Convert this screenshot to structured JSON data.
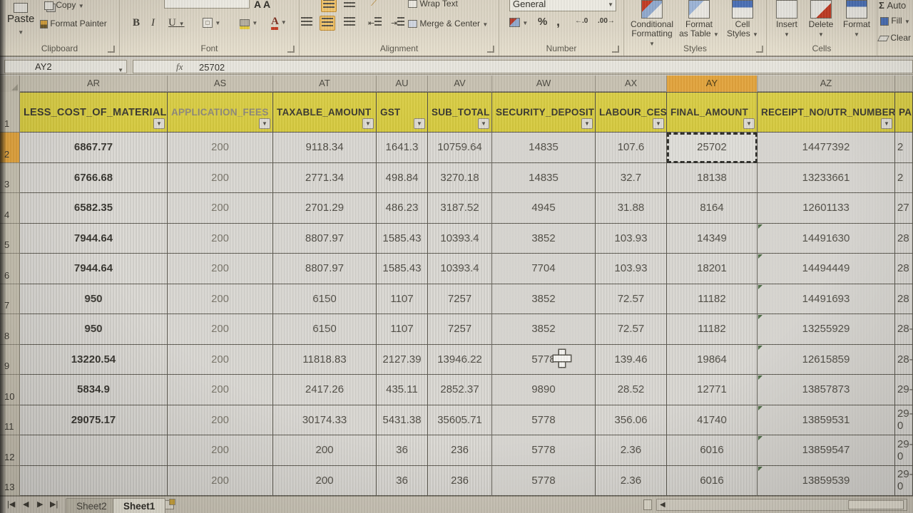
{
  "ribbon": {
    "clipboard": {
      "label": "Clipboard",
      "paste": "Paste",
      "copy": "Copy",
      "format_painter": "Format Painter"
    },
    "font": {
      "label": "Font",
      "bold": "B",
      "italic": "I",
      "underline": "U",
      "grow_shrink": "A A"
    },
    "alignment": {
      "label": "Alignment",
      "wrap_text": "Wrap Text",
      "merge_center": "Merge & Center"
    },
    "number": {
      "label": "Number",
      "format": "General",
      "percent": "%",
      "comma": ",",
      "inc_dec": "←.0",
      "dec_dec": ".00→"
    },
    "styles": {
      "label": "Styles",
      "conditional_1": "Conditional",
      "conditional_2": "Formatting",
      "table_1": "Format",
      "table_2": "as Table",
      "cellstyles_1": "Cell",
      "cellstyles_2": "Styles"
    },
    "cells": {
      "label": "Cells",
      "insert": "Insert",
      "delete": "Delete",
      "format": "Format"
    },
    "editing": {
      "autosum": "Auto",
      "fill": "Fill",
      "clear": "Clear",
      "sigma": "Σ"
    }
  },
  "formula_bar": {
    "name_box": "AY2",
    "fx": "fx",
    "value": "25702"
  },
  "grid": {
    "column_letters": [
      "AR",
      "AS",
      "AT",
      "AU",
      "AV",
      "AW",
      "AX",
      "AY",
      "AZ",
      ""
    ],
    "row1_label": "1",
    "headers": [
      "LESS_COST_OF_MATERIALS",
      "APPLICATION_FEES",
      "TAXABLE_AMOUNT",
      "GST",
      "SUB_TOTAL",
      "SECURITY_DEPOSIT",
      "LABOUR_CESS",
      "FINAL_AMOUNT",
      "RECEIPT_NO/UTR_NUMBER",
      "PA"
    ],
    "selected_column": "AY",
    "selected_row": 2,
    "az_error_flag_rows": [
      5,
      6,
      7,
      8,
      9,
      10,
      11,
      12,
      13
    ],
    "rows": [
      {
        "n": 2,
        "cells": [
          "6867.77",
          "200",
          "9118.34",
          "1641.3",
          "10759.64",
          "14835",
          "107.6",
          "25702",
          "14477392",
          "2"
        ]
      },
      {
        "n": 3,
        "cells": [
          "6766.68",
          "200",
          "2771.34",
          "498.84",
          "3270.18",
          "14835",
          "32.7",
          "18138",
          "13233661",
          "2"
        ]
      },
      {
        "n": 4,
        "cells": [
          "6582.35",
          "200",
          "2701.29",
          "486.23",
          "3187.52",
          "4945",
          "31.88",
          "8164",
          "12601133",
          "27"
        ]
      },
      {
        "n": 5,
        "cells": [
          "7944.64",
          "200",
          "8807.97",
          "1585.43",
          "10393.4",
          "3852",
          "103.93",
          "14349",
          "14491630",
          "28"
        ]
      },
      {
        "n": 6,
        "cells": [
          "7944.64",
          "200",
          "8807.97",
          "1585.43",
          "10393.4",
          "7704",
          "103.93",
          "18201",
          "14494449",
          "28"
        ]
      },
      {
        "n": 7,
        "cells": [
          "950",
          "200",
          "6150",
          "1107",
          "7257",
          "3852",
          "72.57",
          "11182",
          "14491693",
          "28"
        ]
      },
      {
        "n": 8,
        "cells": [
          "950",
          "200",
          "6150",
          "1107",
          "7257",
          "3852",
          "72.57",
          "11182",
          "13255929",
          "28-"
        ]
      },
      {
        "n": 9,
        "cells": [
          "13220.54",
          "200",
          "11818.83",
          "2127.39",
          "13946.22",
          "5778",
          "139.46",
          "19864",
          "12615859",
          "28-"
        ]
      },
      {
        "n": 10,
        "cells": [
          "5834.9",
          "200",
          "2417.26",
          "435.11",
          "2852.37",
          "9890",
          "28.52",
          "12771",
          "13857873",
          "29-"
        ]
      },
      {
        "n": 11,
        "cells": [
          "29075.17",
          "200",
          "30174.33",
          "5431.38",
          "35605.71",
          "5778",
          "356.06",
          "41740",
          "13859531",
          "29-0"
        ]
      },
      {
        "n": 12,
        "cells": [
          "",
          "200",
          "200",
          "36",
          "236",
          "5778",
          "2.36",
          "6016",
          "13859547",
          "29-0"
        ]
      },
      {
        "n": 13,
        "cells": [
          "",
          "200",
          "200",
          "36",
          "236",
          "5778",
          "2.36",
          "6016",
          "13859539",
          "29-0"
        ]
      }
    ]
  },
  "sheet_tabs": {
    "tab1": "Sheet2",
    "tab2": "Sheet1",
    "active": "Sheet1"
  },
  "colors": {
    "header_fill": "#d7cb41",
    "selection_accent": "#e2a33c",
    "ribbon_bg": "#ddd6c6",
    "grid_line": "#5f5c53"
  }
}
